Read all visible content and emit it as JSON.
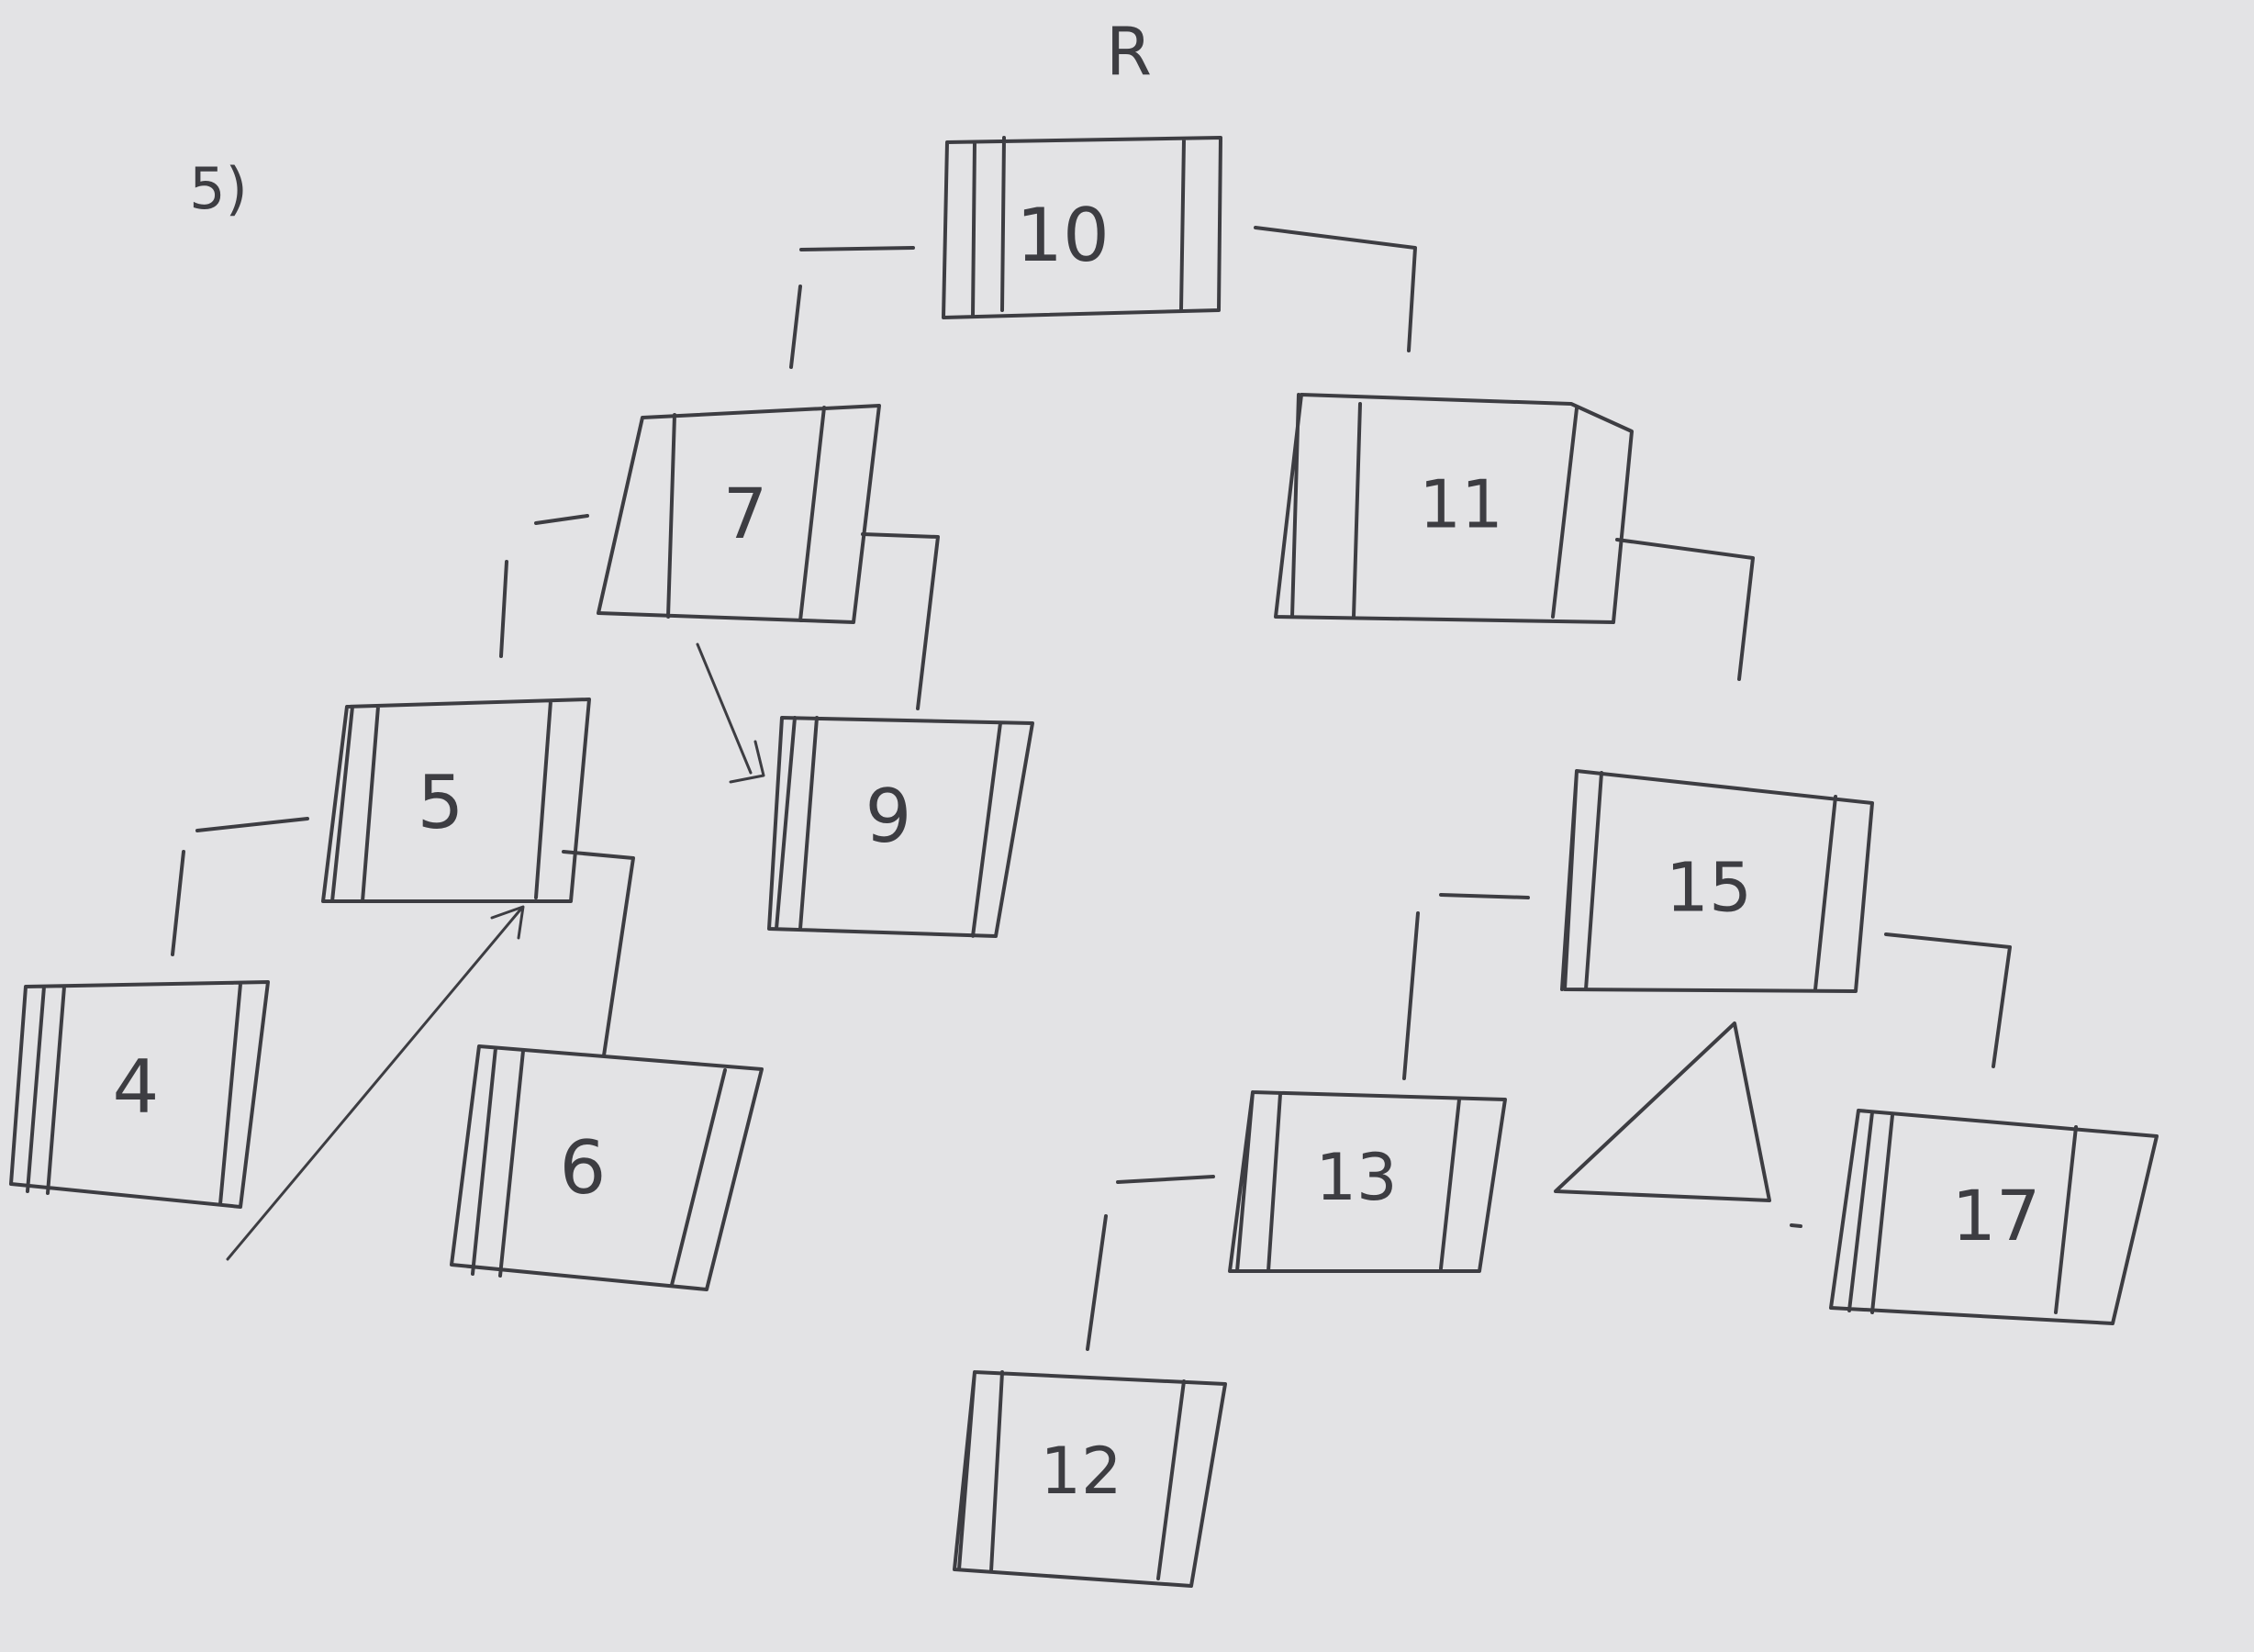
{
  "problem_number": "5)",
  "root_marker": "R",
  "nodes": [
    {
      "id": "n10",
      "key": "10"
    },
    {
      "id": "n7",
      "key": "7"
    },
    {
      "id": "n11",
      "key": "11"
    },
    {
      "id": "n5",
      "key": "5"
    },
    {
      "id": "n9",
      "key": "9"
    },
    {
      "id": "n4",
      "key": "4"
    },
    {
      "id": "n6",
      "key": "6"
    },
    {
      "id": "n15",
      "key": "15"
    },
    {
      "id": "n13",
      "key": "13"
    },
    {
      "id": "n17",
      "key": "17"
    },
    {
      "id": "n12",
      "key": "12"
    }
  ],
  "edges": [
    {
      "from": "10",
      "to": "7",
      "side": "left"
    },
    {
      "from": "10",
      "to": "11",
      "side": "right"
    },
    {
      "from": "7",
      "to": "5",
      "side": "left"
    },
    {
      "from": "7",
      "to": "9",
      "side": "right"
    },
    {
      "from": "5",
      "to": "4",
      "side": "left"
    },
    {
      "from": "5",
      "to": "6",
      "side": "right"
    },
    {
      "from": "11",
      "to": "15",
      "side": "right"
    },
    {
      "from": "15",
      "to": "13",
      "side": "left"
    },
    {
      "from": "15",
      "to": "17",
      "side": "right"
    },
    {
      "from": "13",
      "to": "12",
      "side": "left"
    }
  ],
  "colors": {
    "ink": "#3d3d42",
    "board": "#e3e3e5"
  }
}
